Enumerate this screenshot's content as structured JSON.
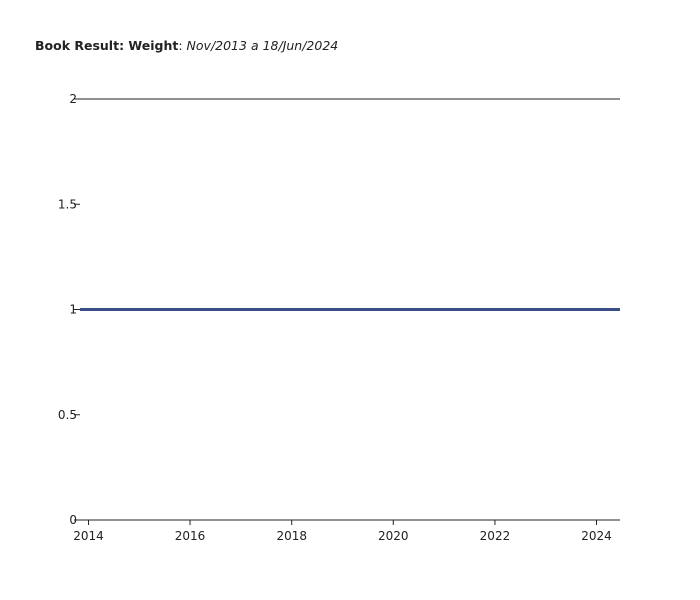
{
  "chart_data": {
    "type": "line",
    "title": "Book Result: Weight",
    "subtitle": "Nov/2013 a 18/Jun/2024",
    "xlabel": "",
    "ylabel": "",
    "xlim": [
      "2013-11-01",
      "2024-06-18"
    ],
    "ylim": [
      0,
      2
    ],
    "x_ticks": [
      "2014",
      "2016",
      "2018",
      "2020",
      "2022",
      "2024"
    ],
    "y_ticks": [
      "0",
      "0.5",
      "1",
      "1.5",
      "2"
    ],
    "grid": false,
    "legend": "none",
    "series": [
      {
        "color": "#3a4f8a",
        "x": [
          "2013-11-01",
          "2024-06-18"
        ],
        "values": [
          1,
          1
        ]
      }
    ]
  }
}
